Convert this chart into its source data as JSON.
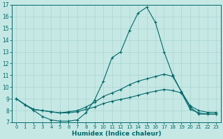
{
  "xlabel": "Humidex (Indice chaleur)",
  "background_color": "#c5e8e5",
  "grid_color": "#aad4d0",
  "line_color": "#006868",
  "xlim": [
    -0.5,
    23.5
  ],
  "ylim": [
    7,
    17
  ],
  "yticks": [
    7,
    8,
    9,
    10,
    11,
    12,
    13,
    14,
    15,
    16,
    17
  ],
  "xticks": [
    0,
    1,
    2,
    3,
    4,
    5,
    6,
    7,
    8,
    9,
    10,
    11,
    12,
    13,
    14,
    15,
    16,
    17,
    18,
    19,
    20,
    21,
    22,
    23
  ],
  "line1_x": [
    0,
    1,
    2,
    3,
    4,
    5,
    6,
    7,
    8,
    9,
    10,
    11,
    12,
    13,
    14,
    15,
    16,
    17,
    18,
    19,
    20,
    21,
    22,
    23
  ],
  "line1_y": [
    9.0,
    8.5,
    8.0,
    7.5,
    7.2,
    7.1,
    7.1,
    7.2,
    7.8,
    8.9,
    10.5,
    12.5,
    13.0,
    14.8,
    16.3,
    16.8,
    15.5,
    13.0,
    11.0,
    9.6,
    8.3,
    7.7,
    7.7,
    7.7
  ],
  "line2_x": [
    0,
    1,
    2,
    3,
    4,
    5,
    6,
    7,
    8,
    9,
    10,
    11,
    12,
    13,
    14,
    15,
    16,
    17,
    18,
    19,
    20,
    21,
    22,
    23
  ],
  "line2_y": [
    9.0,
    8.5,
    8.1,
    8.0,
    7.9,
    7.8,
    7.9,
    8.0,
    8.3,
    8.7,
    9.2,
    9.5,
    9.8,
    10.2,
    10.5,
    10.7,
    10.9,
    11.1,
    10.9,
    9.6,
    8.4,
    8.0,
    7.85,
    7.85
  ],
  "line3_x": [
    0,
    1,
    2,
    3,
    4,
    5,
    6,
    7,
    8,
    9,
    10,
    11,
    12,
    13,
    14,
    15,
    16,
    17,
    18,
    19,
    20,
    21,
    22,
    23
  ],
  "line3_y": [
    9.0,
    8.5,
    8.1,
    8.0,
    7.9,
    7.8,
    7.8,
    7.9,
    8.1,
    8.3,
    8.6,
    8.8,
    8.95,
    9.1,
    9.3,
    9.5,
    9.65,
    9.8,
    9.7,
    9.5,
    8.1,
    7.8,
    7.7,
    7.7
  ]
}
